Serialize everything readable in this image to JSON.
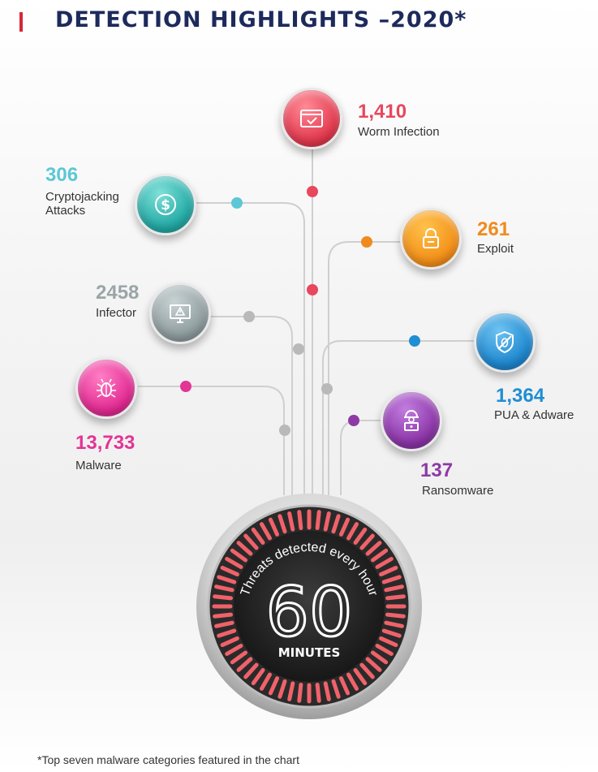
{
  "header": {
    "title": "DETECTION HIGHLIGHTS –2020*"
  },
  "nodes": {
    "worm": {
      "value": "1,410",
      "label": "Worm Infection",
      "icon": "browser-check-icon",
      "color": "#e8475d"
    },
    "crypto": {
      "value": "306",
      "label_line1": "Cryptojacking",
      "label_line2": "Attacks",
      "icon": "dollar-coin-icon",
      "color": "#2eb8b3"
    },
    "exploit": {
      "value": "261",
      "label": "Exploit",
      "icon": "padlock-icon",
      "color": "#f08a1d"
    },
    "infector": {
      "value": "2458",
      "label": "Infector",
      "icon": "monitor-warning-icon",
      "color": "#95a3a5"
    },
    "pua": {
      "value": "1,364",
      "label": "PUA & Adware",
      "icon": "shield-bug-icon",
      "color": "#1f8ed2"
    },
    "malware": {
      "value": "13,733",
      "label": "Malware",
      "icon": "bug-icon",
      "color": "#e23596"
    },
    "ransom": {
      "value": "137",
      "label": "Ransomware",
      "icon": "hacker-laptop-icon",
      "color": "#8e3aa5"
    }
  },
  "gauge": {
    "number": "60",
    "unit": "MINUTES",
    "caption": "Threats detected every hour"
  },
  "footnote": "*Top seven malware categories featured in the chart"
}
